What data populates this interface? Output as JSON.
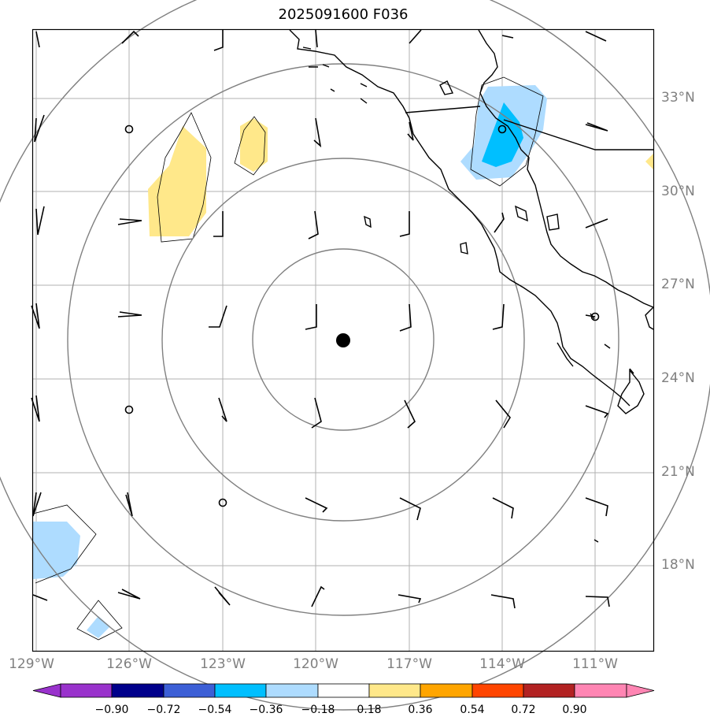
{
  "title": "2025091600 F036",
  "lat_labels": [
    "33°N",
    "30°N",
    "27°N",
    "24°N",
    "21°N",
    "18°N"
  ],
  "lon_labels": [
    "129°W",
    "126°W",
    "123°W",
    "120°W",
    "117°W",
    "114°W",
    "111°W"
  ],
  "colorbar": {
    "labels": [
      "−0.90",
      "−0.72",
      "−0.54",
      "−0.36",
      "−0.18",
      "0.18",
      "0.36",
      "0.54",
      "0.72",
      "0.90"
    ],
    "colors": [
      "#9932cc",
      "#9932cc",
      "#00008b",
      "#3c5fd6",
      "#00bfff",
      "#aedcff",
      "#ffffff",
      "#ffe88a",
      "#ffa500",
      "#ff4500",
      "#b22222",
      "#ff85b3",
      "#ff85b3"
    ]
  },
  "colors": {
    "coast": "#000000",
    "range_ring": "#808080",
    "grid": "#b0b0b0",
    "yellow_fill": "#ffe88a",
    "light_blue_fill": "#aedcff",
    "blue_fill": "#00bfff"
  },
  "storm_center": {
    "lon": -119.15,
    "lat": 25.2
  }
}
